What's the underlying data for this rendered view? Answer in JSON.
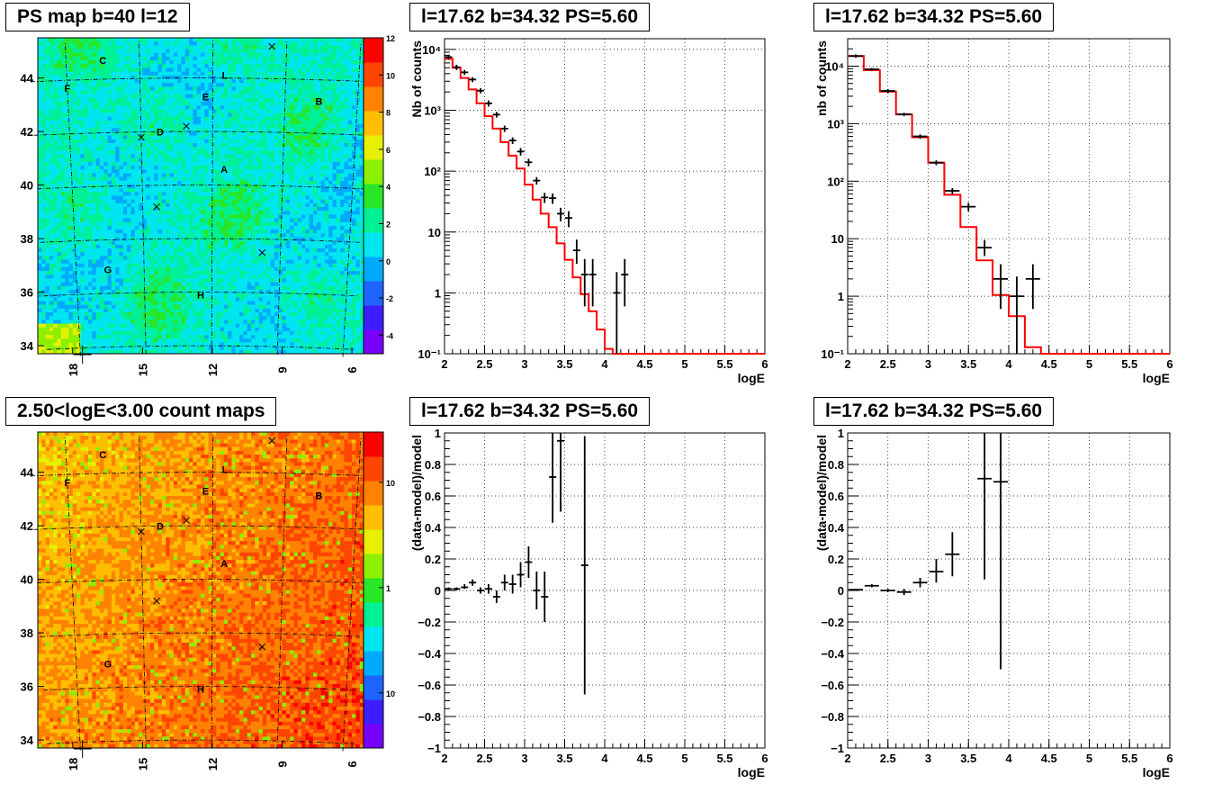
{
  "chart_data": [
    {
      "type": "heatmap",
      "title": "PS map b=40 l=12",
      "x_ticks": [
        "18",
        "15",
        "12",
        "9",
        "6"
      ],
      "y_ticks": [
        "34",
        "36",
        "38",
        "40",
        "42",
        "44"
      ],
      "xlim": [
        19.5,
        5.5
      ],
      "ylim": [
        33.7,
        45.5
      ],
      "colorbar_ticks": [
        "12",
        "10",
        "8",
        "6",
        "4",
        "2",
        "0",
        "-2",
        "-4"
      ],
      "colorbar_range": [
        -5,
        12
      ],
      "source_labels": [
        {
          "label": "C",
          "l": 16.5,
          "b": 44.7
        },
        {
          "label": "F",
          "l": 18.0,
          "b": 43.7
        },
        {
          "label": "L",
          "l": 11.5,
          "b": 44.1
        },
        {
          "label": "E",
          "l": 12.3,
          "b": 43.3
        },
        {
          "label": "B",
          "l": 7.6,
          "b": 43.2
        },
        {
          "label": "D",
          "l": 14.2,
          "b": 42.0
        },
        {
          "label": "A",
          "l": 11.5,
          "b": 40.6
        },
        {
          "label": "G",
          "l": 16.6,
          "b": 36.9
        },
        {
          "label": "H",
          "l": 12.5,
          "b": 35.9
        }
      ],
      "markers": [
        {
          "l": 9.6,
          "b": 45.2
        },
        {
          "l": 13.1,
          "b": 42.2
        },
        {
          "l": 15.0,
          "b": 41.8
        },
        {
          "l": 14.4,
          "b": 39.2
        },
        {
          "l": 9.8,
          "b": 37.5
        }
      ]
    },
    {
      "type": "line",
      "title": "l=17.62 b=34.32 PS=5.60",
      "xlabel": "logE",
      "ylabel": "Nb of counts",
      "xlim": [
        2,
        6
      ],
      "ylim": [
        0.1,
        15000
      ],
      "yscale": "log",
      "grid": true,
      "x_ticks": [
        "2",
        "2.5",
        "3",
        "3.5",
        "4",
        "4.5",
        "5",
        "5.5",
        "6"
      ],
      "y_ticks": [
        {
          "v": 0.1,
          "t": "10⁻¹"
        },
        {
          "v": 1,
          "t": "1"
        },
        {
          "v": 10,
          "t": "10"
        },
        {
          "v": 100,
          "t": "10²"
        },
        {
          "v": 1000,
          "t": "10³"
        },
        {
          "v": 10000,
          "t": "10⁴"
        }
      ],
      "series": [
        {
          "kind": "model-step",
          "color": "#ff0000",
          "edges": [
            2,
            2.1,
            2.2,
            2.3,
            2.4,
            2.5,
            2.6,
            2.7,
            2.8,
            2.9,
            3.0,
            3.1,
            3.2,
            3.3,
            3.4,
            3.5,
            3.6,
            3.7,
            3.8,
            3.9,
            4.0,
            4.1,
            4.2,
            6.0
          ],
          "values": [
            7000,
            5000,
            3400,
            2200,
            1300,
            800,
            500,
            300,
            180,
            110,
            60,
            34,
            20,
            12,
            6.5,
            3.5,
            1.8,
            0.95,
            0.5,
            0.25,
            0.12,
            0.1,
            0.1
          ]
        },
        {
          "kind": "data-points",
          "color": "#000000",
          "points": [
            {
              "x": 2.05,
              "y": 7500,
              "lo": 6800,
              "hi": 8200
            },
            {
              "x": 2.15,
              "y": 5100,
              "lo": 4600,
              "hi": 5600
            },
            {
              "x": 2.25,
              "y": 4200,
              "lo": 3800,
              "hi": 4600
            },
            {
              "x": 2.35,
              "y": 3200,
              "lo": 2900,
              "hi": 3500
            },
            {
              "x": 2.45,
              "y": 2100,
              "lo": 1900,
              "hi": 2300
            },
            {
              "x": 2.55,
              "y": 1300,
              "lo": 1150,
              "hi": 1450
            },
            {
              "x": 2.65,
              "y": 850,
              "lo": 760,
              "hi": 940
            },
            {
              "x": 2.75,
              "y": 500,
              "lo": 440,
              "hi": 560
            },
            {
              "x": 2.85,
              "y": 320,
              "lo": 280,
              "hi": 360
            },
            {
              "x": 2.95,
              "y": 210,
              "lo": 180,
              "hi": 240
            },
            {
              "x": 3.05,
              "y": 140,
              "lo": 120,
              "hi": 160
            },
            {
              "x": 3.15,
              "y": 70,
              "lo": 60,
              "hi": 80
            },
            {
              "x": 3.25,
              "y": 37,
              "lo": 30,
              "hi": 44
            },
            {
              "x": 3.35,
              "y": 36,
              "lo": 29,
              "hi": 43
            },
            {
              "x": 3.45,
              "y": 20,
              "lo": 15,
              "hi": 25
            },
            {
              "x": 3.55,
              "y": 17,
              "lo": 12,
              "hi": 22
            },
            {
              "x": 3.65,
              "y": 5,
              "lo": 3,
              "hi": 7.5
            },
            {
              "x": 3.75,
              "y": 2,
              "lo": 0.6,
              "hi": 3.6
            },
            {
              "x": 3.85,
              "y": 2,
              "lo": 0.6,
              "hi": 3.6
            },
            {
              "x": 4.15,
              "y": 1,
              "lo": 0.1,
              "hi": 2.2
            },
            {
              "x": 4.25,
              "y": 2,
              "lo": 0.6,
              "hi": 3.6
            }
          ]
        }
      ]
    },
    {
      "type": "line",
      "title": "l=17.62 b=34.32 PS=5.60",
      "xlabel": "logE",
      "ylabel": "nb of counts",
      "xlim": [
        2,
        6
      ],
      "ylim": [
        0.1,
        30000
      ],
      "yscale": "log",
      "grid": true,
      "x_ticks": [
        "2",
        "2.5",
        "3",
        "3.5",
        "4",
        "4.5",
        "5",
        "5.5",
        "6"
      ],
      "y_ticks": [
        {
          "v": 0.1,
          "t": "10⁻¹"
        },
        {
          "v": 1,
          "t": "1"
        },
        {
          "v": 10,
          "t": "10"
        },
        {
          "v": 100,
          "t": "10²"
        },
        {
          "v": 1000,
          "t": "10³"
        },
        {
          "v": 10000,
          "t": "10⁴"
        }
      ],
      "series": [
        {
          "kind": "model-step",
          "color": "#ff0000",
          "edges": [
            2,
            2.2,
            2.4,
            2.6,
            2.8,
            3.0,
            3.2,
            3.4,
            3.6,
            3.8,
            4.0,
            4.2,
            4.4,
            6.0
          ],
          "values": [
            15000,
            8500,
            3600,
            1450,
            580,
            210,
            58,
            16,
            4.2,
            1.05,
            0.45,
            0.13,
            0.1
          ]
        },
        {
          "kind": "data-points",
          "color": "#000000",
          "points": [
            {
              "x": 2.1,
              "y": 15000,
              "lo": 14000,
              "hi": 16000
            },
            {
              "x": 2.3,
              "y": 8800,
              "lo": 8300,
              "hi": 9300
            },
            {
              "x": 2.5,
              "y": 3700,
              "lo": 3400,
              "hi": 4000
            },
            {
              "x": 2.7,
              "y": 1450,
              "lo": 1350,
              "hi": 1550
            },
            {
              "x": 2.9,
              "y": 600,
              "lo": 550,
              "hi": 650
            },
            {
              "x": 3.1,
              "y": 210,
              "lo": 190,
              "hi": 230
            },
            {
              "x": 3.3,
              "y": 68,
              "lo": 60,
              "hi": 76
            },
            {
              "x": 3.5,
              "y": 36,
              "lo": 30,
              "hi": 42
            },
            {
              "x": 3.7,
              "y": 7,
              "lo": 5,
              "hi": 9.5
            },
            {
              "x": 3.9,
              "y": 2,
              "lo": 0.6,
              "hi": 3.6
            },
            {
              "x": 4.1,
              "y": 1,
              "lo": 0.1,
              "hi": 2.2
            },
            {
              "x": 4.3,
              "y": 2,
              "lo": 0.6,
              "hi": 3.6
            }
          ]
        }
      ]
    },
    {
      "type": "heatmap",
      "title": "2.50<logE<3.00 count maps",
      "x_ticks": [
        "18",
        "15",
        "12",
        "9",
        "6"
      ],
      "y_ticks": [
        "34",
        "36",
        "38",
        "40",
        "42",
        "44"
      ],
      "xlim": [
        19.5,
        5.5
      ],
      "ylim": [
        33.7,
        45.5
      ],
      "colorbar_ticks": [
        {
          "v": 10,
          "t": "10"
        },
        {
          "v": 1,
          "t": "1"
        },
        {
          "v": 0.1,
          "t": "10⁻¹"
        }
      ],
      "colorbar_range": [
        0.03,
        30
      ],
      "source_labels": [
        {
          "label": "C",
          "l": 16.5,
          "b": 44.7
        },
        {
          "label": "F",
          "l": 18.0,
          "b": 43.7
        },
        {
          "label": "L",
          "l": 11.5,
          "b": 44.1
        },
        {
          "label": "E",
          "l": 12.3,
          "b": 43.3
        },
        {
          "label": "B",
          "l": 7.6,
          "b": 43.2
        },
        {
          "label": "D",
          "l": 14.2,
          "b": 42.0
        },
        {
          "label": "A",
          "l": 11.5,
          "b": 40.6
        },
        {
          "label": "G",
          "l": 16.6,
          "b": 36.9
        },
        {
          "label": "H",
          "l": 12.5,
          "b": 35.9
        }
      ],
      "markers": [
        {
          "l": 9.6,
          "b": 45.2
        },
        {
          "l": 13.1,
          "b": 42.2
        },
        {
          "l": 15.0,
          "b": 41.8
        },
        {
          "l": 14.4,
          "b": 39.2
        },
        {
          "l": 9.8,
          "b": 37.5
        }
      ]
    },
    {
      "type": "scatter",
      "title": "l=17.62 b=34.32 PS=5.60",
      "xlabel": "logE",
      "ylabel": "(data-model)/model",
      "xlim": [
        2,
        6
      ],
      "ylim": [
        -1,
        1
      ],
      "grid": true,
      "x_ticks": [
        "2",
        "2.5",
        "3",
        "3.5",
        "4",
        "4.5",
        "5",
        "5.5",
        "6"
      ],
      "y_ticks": [
        "1",
        "0.8",
        "0.6",
        "0.4",
        "0.2",
        "0",
        "−0.2",
        "−0.4",
        "−0.6",
        "−0.8",
        "−1"
      ],
      "points": [
        {
          "x": 2.05,
          "y": 0.01,
          "lo": 0.0,
          "hi": 0.02
        },
        {
          "x": 2.15,
          "y": 0.01,
          "lo": 0.0,
          "hi": 0.02
        },
        {
          "x": 2.25,
          "y": 0.02,
          "lo": 0.01,
          "hi": 0.04
        },
        {
          "x": 2.35,
          "y": 0.05,
          "lo": 0.03,
          "hi": 0.07
        },
        {
          "x": 2.45,
          "y": 0.0,
          "lo": -0.02,
          "hi": 0.02
        },
        {
          "x": 2.55,
          "y": 0.01,
          "lo": -0.02,
          "hi": 0.04
        },
        {
          "x": 2.65,
          "y": -0.04,
          "lo": -0.08,
          "hi": 0.0
        },
        {
          "x": 2.75,
          "y": 0.05,
          "lo": 0.0,
          "hi": 0.1
        },
        {
          "x": 2.85,
          "y": 0.04,
          "lo": -0.02,
          "hi": 0.1
        },
        {
          "x": 2.95,
          "y": 0.1,
          "lo": 0.02,
          "hi": 0.18
        },
        {
          "x": 3.05,
          "y": 0.18,
          "lo": 0.08,
          "hi": 0.28
        },
        {
          "x": 3.15,
          "y": 0.0,
          "lo": -0.12,
          "hi": 0.12
        },
        {
          "x": 3.25,
          "y": -0.04,
          "lo": -0.2,
          "hi": 0.12
        },
        {
          "x": 3.35,
          "y": 0.72,
          "lo": 0.43,
          "hi": 1.0
        },
        {
          "x": 3.45,
          "y": 0.95,
          "lo": 0.5,
          "hi": 1.0
        },
        {
          "x": 3.75,
          "y": 0.16,
          "lo": -0.66,
          "hi": 0.98
        }
      ]
    },
    {
      "type": "scatter",
      "title": "l=17.62 b=34.32 PS=5.60",
      "xlabel": "logE",
      "ylabel": "(data-model)/model",
      "xlim": [
        2,
        6
      ],
      "ylim": [
        -1,
        1
      ],
      "grid": true,
      "x_ticks": [
        "2",
        "2.5",
        "3",
        "3.5",
        "4",
        "4.5",
        "5",
        "5.5",
        "6"
      ],
      "y_ticks": [
        "1",
        "0.8",
        "0.6",
        "0.4",
        "0.2",
        "0",
        "−0.2",
        "−0.4",
        "−0.6",
        "−0.8",
        "−1"
      ],
      "points": [
        {
          "x": 2.1,
          "y": 0.005,
          "lo": 0.0,
          "hi": 0.01
        },
        {
          "x": 2.3,
          "y": 0.03,
          "lo": 0.02,
          "hi": 0.04
        },
        {
          "x": 2.5,
          "y": 0.0,
          "lo": -0.01,
          "hi": 0.01
        },
        {
          "x": 2.7,
          "y": -0.01,
          "lo": -0.03,
          "hi": 0.01
        },
        {
          "x": 2.9,
          "y": 0.05,
          "lo": 0.02,
          "hi": 0.08
        },
        {
          "x": 3.1,
          "y": 0.12,
          "lo": 0.05,
          "hi": 0.2
        },
        {
          "x": 3.3,
          "y": 0.23,
          "lo": 0.09,
          "hi": 0.37
        },
        {
          "x": 3.7,
          "y": 0.71,
          "lo": 0.07,
          "hi": 1.0
        },
        {
          "x": 3.9,
          "y": 0.69,
          "lo": -0.5,
          "hi": 1.0
        }
      ]
    }
  ]
}
